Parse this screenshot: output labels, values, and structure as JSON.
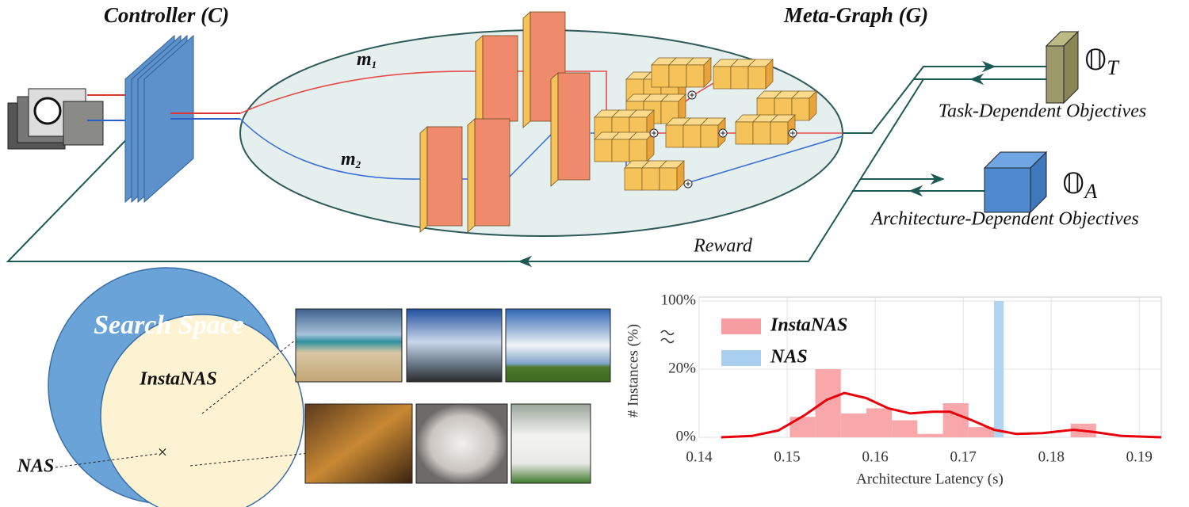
{
  "diagram": {
    "controller_title": "Controller (C)",
    "metagraph_title": "Meta-Graph (G)",
    "m1": {
      "base": "m",
      "sub": "1"
    },
    "m2": {
      "base": "m",
      "sub": "2"
    },
    "task_symbol": {
      "base": "𝕆",
      "sub": "T"
    },
    "task_label": "Task-Dependent Objectives",
    "arch_symbol": {
      "base": "𝕆",
      "sub": "A"
    },
    "arch_label": "Architecture-Dependent Objectives",
    "reward": "Reward",
    "search_space": "Search Space",
    "instanas": "InstaNAS",
    "nas": "NAS",
    "nas_marker": "×"
  },
  "chart_data": {
    "type": "histogram",
    "xlabel": "Architecture Latency (s)",
    "ylabel": "# Instances (%)",
    "xlim": [
      0.14,
      0.1925
    ],
    "xticks": [
      0.14,
      0.15,
      0.16,
      0.17,
      0.18,
      0.19
    ],
    "ylim": [
      0,
      100
    ],
    "ybreak": [
      40,
      100
    ],
    "yticks": [
      {
        "value": 0,
        "label": "0%"
      },
      {
        "value": 20,
        "label": "20%"
      },
      {
        "value": 100,
        "label": "100%"
      }
    ],
    "grid": true,
    "legend": "upper left",
    "series": [
      {
        "name": "InstaNAS",
        "color": "#f79ea2",
        "bins": [
          0.1503,
          0.1532,
          0.1561,
          0.159,
          0.1619,
          0.1648,
          0.1677,
          0.1706,
          0.1735,
          0.1764,
          0.1793,
          0.1822,
          0.1851
        ],
        "values": [
          6,
          20,
          7,
          8.5,
          5,
          1,
          10,
          3,
          0,
          0,
          0,
          4
        ]
      },
      {
        "name": "NAS",
        "color": "#a8cfee",
        "bins": [
          0.1735,
          0.1746
        ],
        "values": [
          100
        ]
      }
    ],
    "kde": {
      "color": "#e8000b",
      "x": [
        0.1425,
        0.146,
        0.149,
        0.152,
        0.1545,
        0.1565,
        0.159,
        0.1615,
        0.164,
        0.1665,
        0.1685,
        0.171,
        0.1735,
        0.176,
        0.179,
        0.1825,
        0.185,
        0.188,
        0.1925
      ],
      "values": [
        0,
        0.4,
        2,
        6.5,
        11,
        13,
        11.5,
        8.5,
        7,
        7.5,
        7.5,
        5,
        2.2,
        1,
        1.2,
        2.2,
        1.5,
        0.4,
        0
      ]
    }
  }
}
